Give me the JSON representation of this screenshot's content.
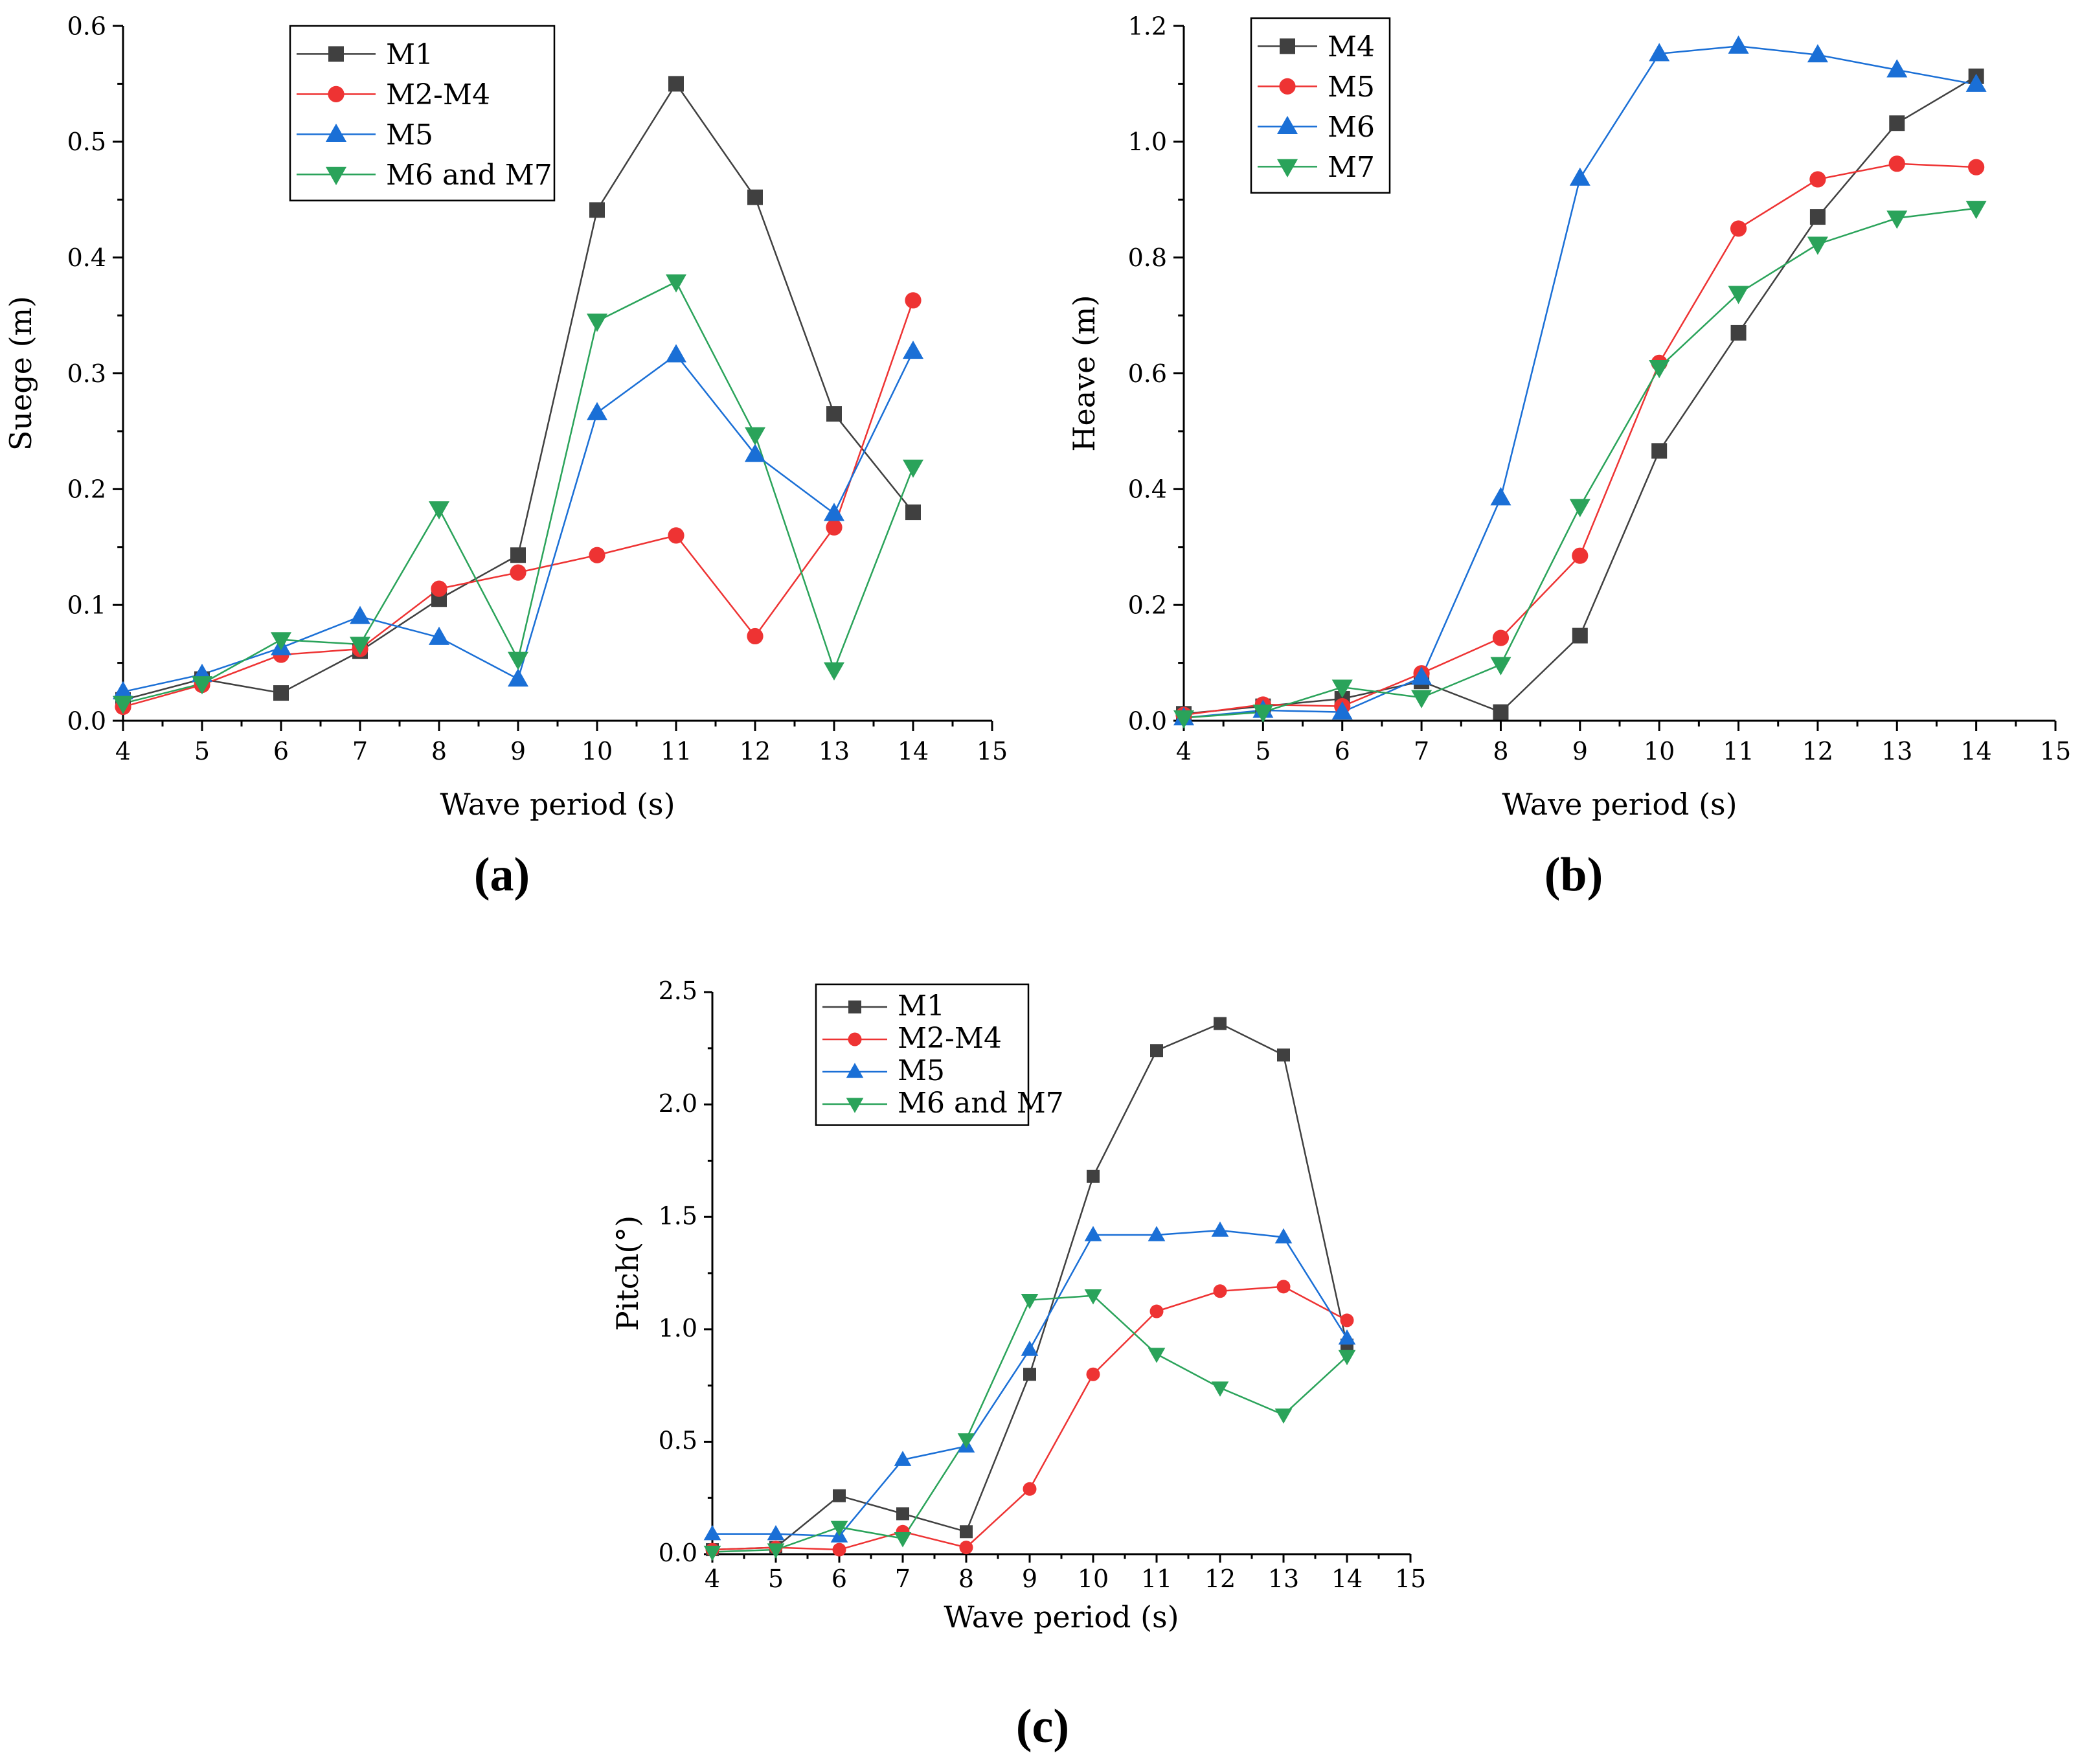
{
  "chart_data": [
    {
      "id": "a",
      "type": "line",
      "panel_label": "(a)",
      "xlabel": "Wave period (s)",
      "ylabel": "Suege (m)",
      "xlim": [
        4,
        15
      ],
      "ylim": [
        0,
        0.6
      ],
      "xticks": [
        4,
        5,
        6,
        7,
        8,
        9,
        10,
        11,
        12,
        13,
        14,
        15
      ],
      "yticks": [
        0.0,
        0.1,
        0.2,
        0.3,
        0.4,
        0.5,
        0.6
      ],
      "ytick_labels": [
        "0.0",
        "0.1",
        "0.2",
        "0.3",
        "0.4",
        "0.5",
        "0.6"
      ],
      "x": [
        4,
        5,
        6,
        7,
        8,
        9,
        10,
        11,
        12,
        13,
        14
      ],
      "series": [
        {
          "name": "M1",
          "color": "#404040",
          "marker": "square",
          "values": [
            0.018,
            0.036,
            0.024,
            0.06,
            0.105,
            0.143,
            0.441,
            0.55,
            0.452,
            0.265,
            0.18
          ]
        },
        {
          "name": "M2-M4",
          "color": "#ee3333",
          "marker": "circle",
          "values": [
            0.012,
            0.031,
            0.057,
            0.062,
            0.114,
            0.128,
            0.143,
            0.16,
            0.073,
            0.167,
            0.363
          ]
        },
        {
          "name": "M5",
          "color": "#1a6fd6",
          "marker": "triangle-up",
          "values": [
            0.025,
            0.04,
            0.063,
            0.09,
            0.072,
            0.036,
            0.266,
            0.316,
            0.23,
            0.179,
            0.319
          ]
        },
        {
          "name": "M6 and M7",
          "color": "#2aa35a",
          "marker": "triangle-down",
          "values": [
            0.015,
            0.032,
            0.07,
            0.066,
            0.183,
            0.053,
            0.345,
            0.379,
            0.247,
            0.044,
            0.219
          ]
        }
      ]
    },
    {
      "id": "b",
      "type": "line",
      "panel_label": "(b)",
      "xlabel": "Wave period (s)",
      "ylabel": "Heave (m)",
      "xlim": [
        4,
        15
      ],
      "ylim": [
        0,
        1.2
      ],
      "xticks": [
        4,
        5,
        6,
        7,
        8,
        9,
        10,
        11,
        12,
        13,
        14,
        15
      ],
      "yticks": [
        0.0,
        0.2,
        0.4,
        0.6,
        0.8,
        1.0,
        1.2
      ],
      "ytick_labels": [
        "0.0",
        "0.2",
        "0.4",
        "0.6",
        "0.8",
        "1.0",
        "1.2"
      ],
      "x": [
        4,
        5,
        6,
        7,
        8,
        9,
        10,
        11,
        12,
        13,
        14
      ],
      "series": [
        {
          "name": "M4",
          "color": "#404040",
          "marker": "square",
          "values": [
            0.012,
            0.025,
            0.038,
            0.068,
            0.015,
            0.147,
            0.466,
            0.67,
            0.87,
            1.032,
            1.113
          ]
        },
        {
          "name": "M5",
          "color": "#ee3333",
          "marker": "circle",
          "values": [
            0.01,
            0.028,
            0.025,
            0.082,
            0.143,
            0.285,
            0.618,
            0.85,
            0.935,
            0.962,
            0.956
          ]
        },
        {
          "name": "M6",
          "color": "#1a6fd6",
          "marker": "triangle-up",
          "values": [
            0.005,
            0.018,
            0.015,
            0.075,
            0.385,
            0.937,
            1.152,
            1.165,
            1.15,
            1.124,
            1.099
          ]
        },
        {
          "name": "M7",
          "color": "#2aa35a",
          "marker": "triangle-down",
          "values": [
            0.005,
            0.015,
            0.058,
            0.04,
            0.097,
            0.37,
            0.61,
            0.738,
            0.823,
            0.868,
            0.885
          ]
        }
      ]
    },
    {
      "id": "c",
      "type": "line",
      "panel_label": "(c)",
      "xlabel": "Wave period (s)",
      "ylabel": "Pitch(°)",
      "xlim": [
        4,
        15
      ],
      "ylim": [
        0,
        2.5
      ],
      "xticks": [
        4,
        5,
        6,
        7,
        8,
        9,
        10,
        11,
        12,
        13,
        14,
        15
      ],
      "yticks": [
        0.0,
        0.5,
        1.0,
        1.5,
        2.0,
        2.5
      ],
      "ytick_labels": [
        "0.0",
        "0.5",
        "1.0",
        "1.5",
        "2.0",
        "2.5"
      ],
      "x": [
        4,
        5,
        6,
        7,
        8,
        9,
        10,
        11,
        12,
        13,
        14
      ],
      "series": [
        {
          "name": "M1",
          "color": "#404040",
          "marker": "square",
          "values": [
            0.02,
            0.03,
            0.26,
            0.18,
            0.1,
            0.8,
            1.68,
            2.24,
            2.36,
            2.22,
            0.93
          ]
        },
        {
          "name": "M2-M4",
          "color": "#ee3333",
          "marker": "circle",
          "values": [
            0.02,
            0.03,
            0.02,
            0.1,
            0.03,
            0.29,
            0.8,
            1.08,
            1.17,
            1.19,
            1.04
          ]
        },
        {
          "name": "M5",
          "color": "#1a6fd6",
          "marker": "triangle-up",
          "values": [
            0.09,
            0.09,
            0.08,
            0.42,
            0.48,
            0.91,
            1.42,
            1.42,
            1.44,
            1.41,
            0.96
          ]
        },
        {
          "name": "M6 and M7",
          "color": "#2aa35a",
          "marker": "triangle-down",
          "values": [
            0.01,
            0.02,
            0.12,
            0.07,
            0.51,
            1.13,
            1.15,
            0.89,
            0.74,
            0.62,
            0.88
          ]
        }
      ]
    }
  ]
}
